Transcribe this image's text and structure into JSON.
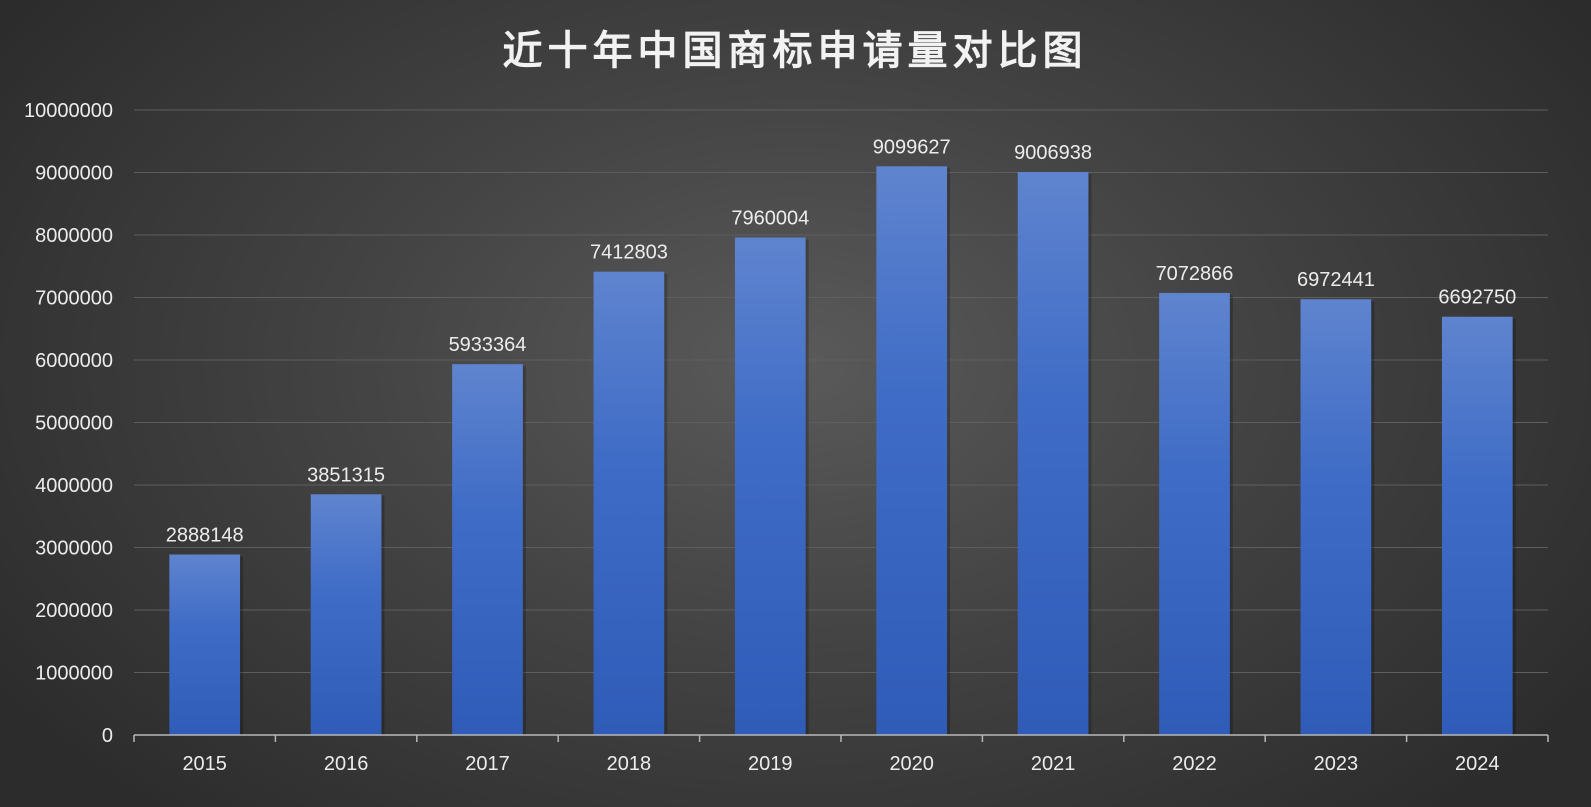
{
  "chart_data": {
    "type": "bar",
    "title": "近十年中国商标申请量对比图",
    "categories": [
      "2015",
      "2016",
      "2017",
      "2018",
      "2019",
      "2020",
      "2021",
      "2022",
      "2023",
      "2024"
    ],
    "values": [
      2888148,
      3851315,
      5933364,
      7412803,
      7960004,
      9099627,
      9006938,
      7072866,
      6972441,
      6692750
    ],
    "data_labels": [
      "2888148",
      "3851315",
      "5933364",
      "7412803",
      "7960004",
      "9099627",
      "9006938",
      "7072866",
      "6972441",
      "6692750"
    ],
    "yticks": [
      "0",
      "1000000",
      "2000000",
      "3000000",
      "4000000",
      "5000000",
      "6000000",
      "7000000",
      "8000000",
      "9000000",
      "10000000"
    ],
    "ylim": [
      0,
      10000000
    ],
    "xlabel": "",
    "ylabel": "",
    "grid": true,
    "legend": "none",
    "colors": {
      "bar_top": "#5f84cf",
      "bar_mid": "#3f6cc6",
      "bar_bottom": "#2f5cb8",
      "text": "#ececec",
      "grid": "#5e5e5e",
      "background": "#3c3c3c"
    }
  }
}
